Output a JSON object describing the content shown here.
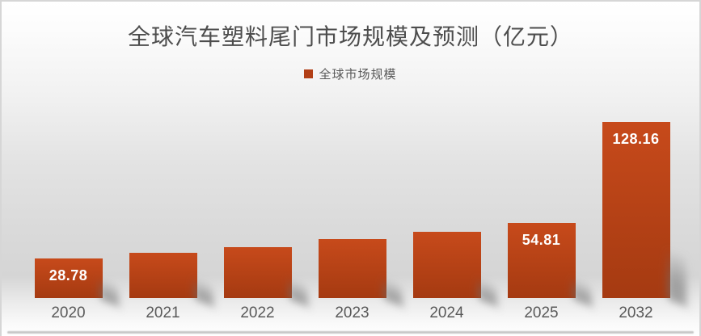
{
  "chart_data": {
    "type": "bar",
    "title": "全球汽车塑料尾门市场规模及预测（亿元）",
    "legend_position": "top-center",
    "categories": [
      "2020",
      "2021",
      "2022",
      "2023",
      "2024",
      "2025",
      "2032"
    ],
    "series": [
      {
        "name": "全球市场规模",
        "values": [
          28.78,
          33.2,
          37.3,
          42.7,
          48.4,
          54.81,
          128.16
        ],
        "data_labels": [
          "28.78",
          "",
          "",
          "",
          "",
          "54.81",
          "128.16"
        ]
      }
    ],
    "xlabel": "",
    "ylabel": "",
    "ylim": [
      0,
      135
    ],
    "grid": false,
    "axis_line": false
  },
  "colors": {
    "bar_top": "#c74a1b",
    "bar_bottom": "#a53a11",
    "legend_swatch": "#b23f16",
    "title_text": "#4d4d4d",
    "axis_text": "#595959",
    "data_label_text": "#ffffff"
  }
}
